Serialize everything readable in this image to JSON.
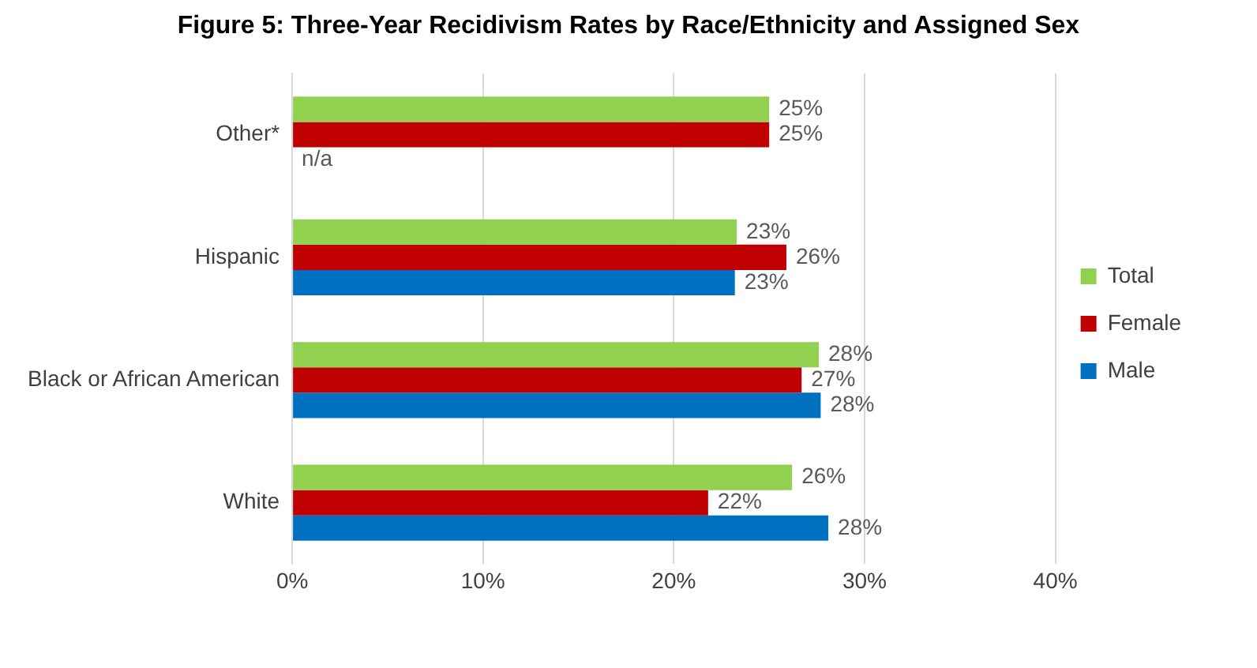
{
  "chart_data": {
    "type": "bar",
    "orientation": "horizontal",
    "title": "Figure 5:  Three-Year Recidivism Rates by Race/Ethnicity and Assigned Sex",
    "categories": [
      "Other*",
      "Hispanic",
      "Black or African American",
      "White"
    ],
    "series": [
      {
        "name": "Total",
        "color": "#92d050",
        "values": [
          25.0,
          23.3,
          27.6,
          26.2
        ],
        "value_labels": [
          "25%",
          "23%",
          "28%",
          "26%"
        ]
      },
      {
        "name": "Female",
        "color": "#c00000",
        "values": [
          25.0,
          25.9,
          26.7,
          21.8
        ],
        "value_labels": [
          "25%",
          "26%",
          "27%",
          "22%"
        ]
      },
      {
        "name": "Male",
        "color": "#0070c0",
        "values": [
          null,
          23.2,
          27.7,
          28.1
        ],
        "value_labels": [
          "n/a",
          "23%",
          "28%",
          "28%"
        ]
      }
    ],
    "xlim": [
      0,
      40
    ],
    "xticks": [
      {
        "value": 0,
        "label": "0%"
      },
      {
        "value": 10,
        "label": "10%"
      },
      {
        "value": 20,
        "label": "20%"
      },
      {
        "value": 30,
        "label": "30%"
      },
      {
        "value": 40,
        "label": "40%"
      }
    ],
    "grid": "x",
    "legend": "right"
  }
}
